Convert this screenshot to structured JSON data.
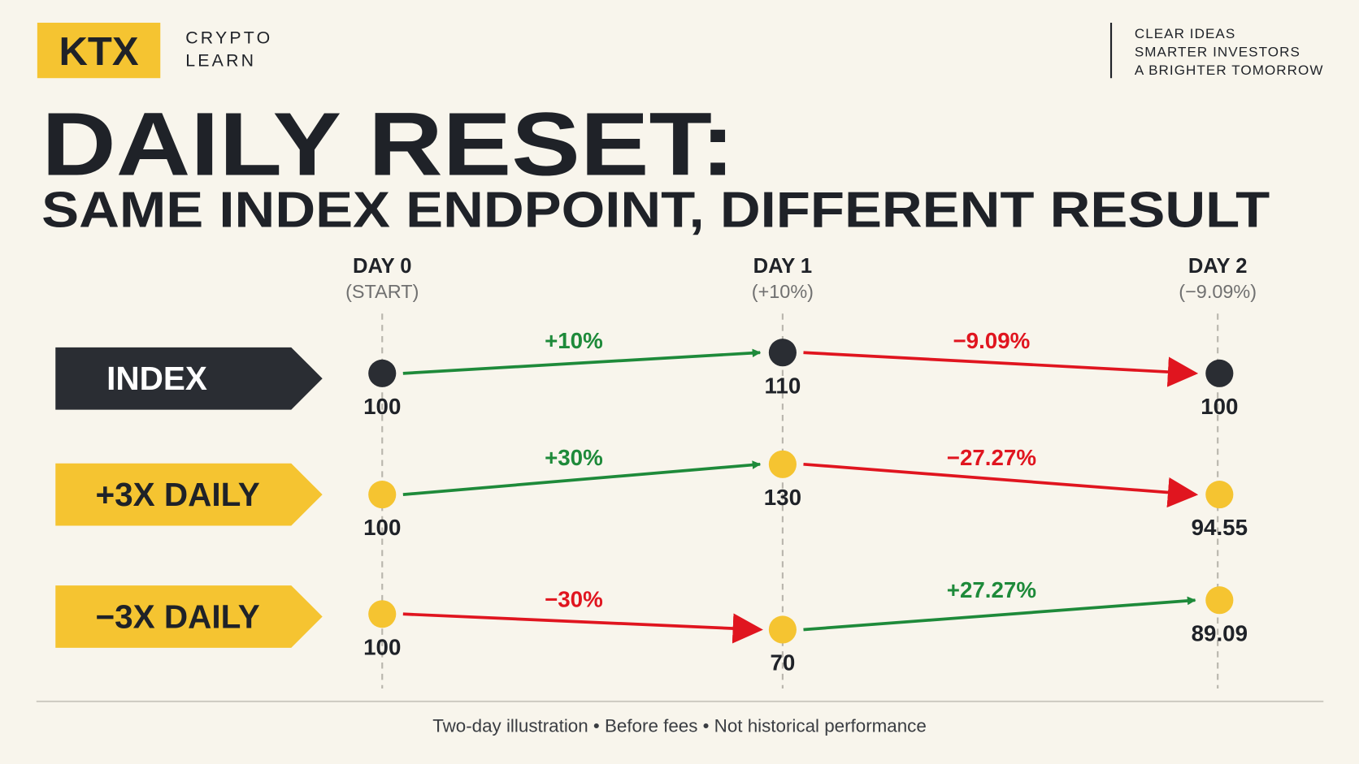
{
  "header": {
    "logo": "KTX",
    "brand": [
      "CRYPTO",
      "LEARN"
    ],
    "tagline": [
      "CLEAR IDEAS",
      "SMARTER INVESTORS",
      "A BRIGHTER TOMORROW"
    ]
  },
  "title": "DAILY RESET:",
  "subtitle": "SAME INDEX ENDPOINT, DIFFERENT RESULT",
  "columns": [
    {
      "label": "DAY 0",
      "note": "(START)"
    },
    {
      "label": "DAY 1",
      "note": "(+10%)"
    },
    {
      "label": "DAY 2",
      "note": "(−9.09%)"
    }
  ],
  "rows": [
    {
      "label": "INDEX",
      "values": [
        "100",
        "110",
        "100"
      ],
      "changes": [
        "+10%",
        "−9.09%"
      ]
    },
    {
      "label": "+3X DAILY",
      "values": [
        "100",
        "130",
        "94.55"
      ],
      "changes": [
        "+30%",
        "−27.27%"
      ]
    },
    {
      "label": "−3X DAILY",
      "values": [
        "100",
        "70",
        "89.09"
      ],
      "changes": [
        "−30%",
        "+27.27%"
      ]
    }
  ],
  "footer": "Two-day illustration • Before fees • Not historical performance"
}
